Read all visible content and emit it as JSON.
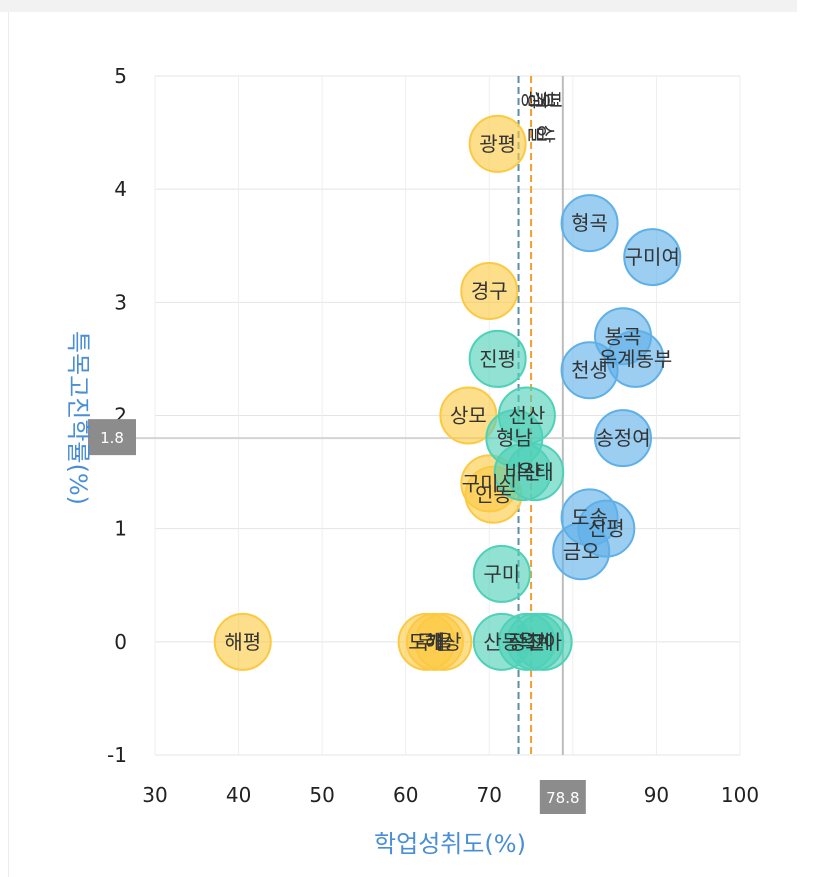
{
  "chart_data": {
    "type": "scatter",
    "title": "",
    "xlabel": "학업성취도(%)",
    "ylabel": "특목고진학률(%)",
    "xlim": [
      30,
      100
    ],
    "ylim": [
      -1,
      5
    ],
    "x_ticks": [
      "30",
      "40",
      "50",
      "60",
      "70",
      "80",
      "90",
      "100"
    ],
    "y_ticks": [
      "-1",
      "0",
      "1",
      "2",
      "3",
      "4",
      "5"
    ],
    "grid": true,
    "reference_lines": [
      {
        "axis": "x",
        "value": 78.8,
        "label": "78.8",
        "style": "solid",
        "color": "#bdbdbd"
      },
      {
        "axis": "y",
        "value": 1.8,
        "label": "1.8",
        "style": "solid",
        "color": "#d4d4d4"
      },
      {
        "axis": "x",
        "value": 73.5,
        "label": "",
        "style": "dashed",
        "color": "#5b8fa8"
      },
      {
        "axis": "x",
        "value": 75.0,
        "label": "",
        "style": "dashed",
        "color": "#f0a030"
      }
    ],
    "series": [
      {
        "color": "#fcc943",
        "points": [
          {
            "label": "해평",
            "x": 40.5,
            "y": 0.0
          },
          {
            "label": "도개",
            "x": 62.5,
            "y": 0.0
          },
          {
            "label": "무을",
            "x": 63.5,
            "y": 0.0
          },
          {
            "label": "해상",
            "x": 64.5,
            "y": 0.0
          },
          {
            "label": "광평",
            "x": 71.0,
            "y": 4.4
          },
          {
            "label": "경구",
            "x": 70.0,
            "y": 3.1
          },
          {
            "label": "상모",
            "x": 67.5,
            "y": 2.0
          },
          {
            "label": "구미신",
            "x": 70.0,
            "y": 1.4
          },
          {
            "label": "인동",
            "x": 70.5,
            "y": 1.3
          }
        ]
      },
      {
        "color": "#4fd1b8",
        "points": [
          {
            "label": "진평",
            "x": 71.0,
            "y": 2.5
          },
          {
            "label": "선산",
            "x": 74.5,
            "y": 2.0
          },
          {
            "label": "형남",
            "x": 73.0,
            "y": 1.8
          },
          {
            "label": "비산",
            "x": 74.0,
            "y": 1.5
          },
          {
            "label": "옥태",
            "x": 75.5,
            "y": 1.5
          },
          {
            "label": "구미",
            "x": 71.5,
            "y": 0.6
          },
          {
            "label": "산동",
            "x": 71.5,
            "y": 0.0
          },
          {
            "label": "장천",
            "x": 74.5,
            "y": 0.0
          },
          {
            "label": "옥계",
            "x": 75.5,
            "y": 0.0
          },
          {
            "label": "고아",
            "x": 76.5,
            "y": 0.0
          }
        ]
      },
      {
        "color": "#5fb0e8",
        "points": [
          {
            "label": "형곡",
            "x": 82.0,
            "y": 3.7
          },
          {
            "label": "구미여",
            "x": 89.5,
            "y": 3.4
          },
          {
            "label": "봉곡",
            "x": 86.0,
            "y": 2.7
          },
          {
            "label": "옥계동부",
            "x": 87.5,
            "y": 2.5
          },
          {
            "label": "천생",
            "x": 82.0,
            "y": 2.4
          },
          {
            "label": "송정여",
            "x": 86.0,
            "y": 1.8
          },
          {
            "label": "도송",
            "x": 82.0,
            "y": 1.1
          },
          {
            "label": "신평",
            "x": 84.0,
            "y": 1.0
          },
          {
            "label": "금오",
            "x": 81.0,
            "y": 0.8
          }
        ]
      }
    ],
    "vertical_labels": [
      {
        "text": "경일",
        "x": 75.6
      },
      {
        "text": "북삼",
        "x": 76.6
      },
      {
        "text": "평",
        "x": 77.4
      },
      {
        "text": "광",
        "x": 74.8
      }
    ]
  }
}
